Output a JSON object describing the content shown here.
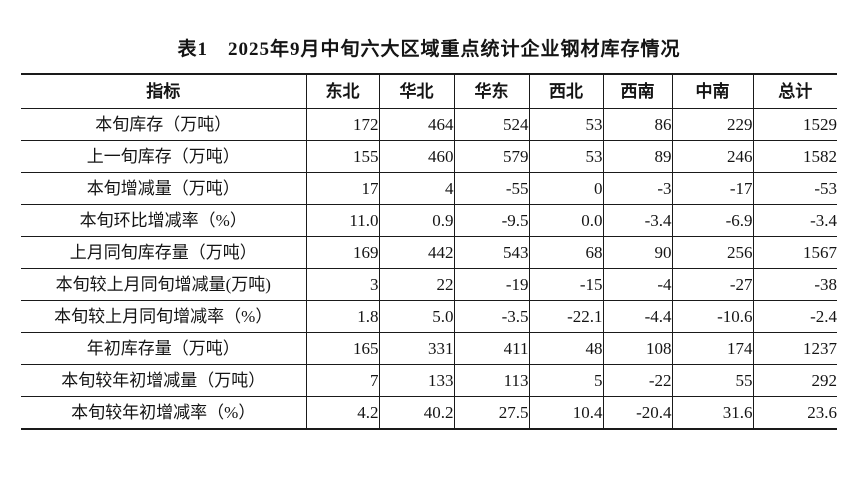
{
  "title": "表1　2025年9月中旬六大区域重点统计企业钢材库存情况",
  "table": {
    "columns": [
      "指标",
      "东北",
      "华北",
      "华东",
      "西北",
      "西南",
      "中南",
      "总计"
    ],
    "rows": [
      {
        "label": "本旬库存（万吨）",
        "values": [
          "172",
          "464",
          "524",
          "53",
          "86",
          "229",
          "1529"
        ]
      },
      {
        "label": "上一旬库存（万吨）",
        "values": [
          "155",
          "460",
          "579",
          "53",
          "89",
          "246",
          "1582"
        ]
      },
      {
        "label": "本旬增减量（万吨）",
        "values": [
          "17",
          "4",
          "-55",
          "0",
          "-3",
          "-17",
          "-53"
        ]
      },
      {
        "label": "本旬环比增减率（%）",
        "values": [
          "11.0",
          "0.9",
          "-9.5",
          "0.0",
          "-3.4",
          "-6.9",
          "-3.4"
        ]
      },
      {
        "label": "上月同旬库存量（万吨）",
        "values": [
          "169",
          "442",
          "543",
          "68",
          "90",
          "256",
          "1567"
        ]
      },
      {
        "label": "本旬较上月同旬增减量(万吨)",
        "values": [
          "3",
          "22",
          "-19",
          "-15",
          "-4",
          "-27",
          "-38"
        ]
      },
      {
        "label": "本旬较上月同旬增减率（%）",
        "values": [
          "1.8",
          "5.0",
          "-3.5",
          "-22.1",
          "-4.4",
          "-10.6",
          "-2.4"
        ]
      },
      {
        "label": "年初库存量（万吨）",
        "values": [
          "165",
          "331",
          "411",
          "48",
          "108",
          "174",
          "1237"
        ]
      },
      {
        "label": "本旬较年初增减量（万吨）",
        "values": [
          "7",
          "133",
          "113",
          "5",
          "-22",
          "55",
          "292"
        ]
      },
      {
        "label": "本旬较年初增减率（%）",
        "values": [
          "4.2",
          "40.2",
          "27.5",
          "10.4",
          "-20.4",
          "31.6",
          "23.6"
        ]
      }
    ]
  }
}
